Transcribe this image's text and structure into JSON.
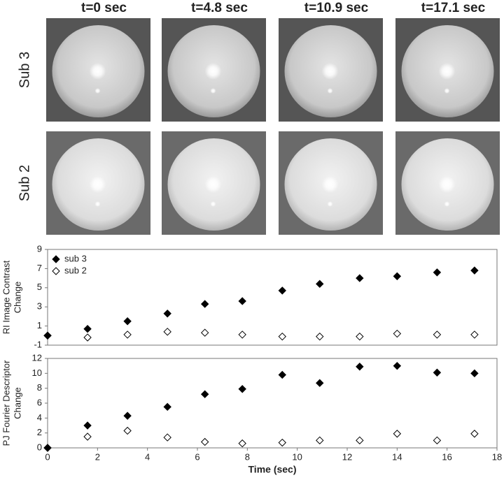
{
  "images": {
    "columns": [
      "t=0 sec",
      "t=4.8 sec",
      "t=10.9 sec",
      "t=17.1 sec"
    ],
    "rows": [
      "Sub 3",
      "Sub 2"
    ]
  },
  "chart_data": [
    {
      "type": "scatter",
      "ylabel": [
        "RI Image Contrast",
        "Change"
      ],
      "x": [
        0,
        1.6,
        3.2,
        4.8,
        6.3,
        7.8,
        9.4,
        10.9,
        12.5,
        14,
        15.6,
        17.1
      ],
      "xlim": [
        0,
        18
      ],
      "ylim": [
        -1,
        9
      ],
      "yticks": [
        -1,
        1,
        3,
        5,
        7,
        9
      ],
      "legend": "upper left",
      "series": [
        {
          "name": "sub 3",
          "color": "#000000",
          "filled": true,
          "values": [
            0,
            0.7,
            1.5,
            2.3,
            3.3,
            3.6,
            4.7,
            5.4,
            6.0,
            6.2,
            6.6,
            6.8
          ]
        },
        {
          "name": "sub 2",
          "color": "#000000",
          "filled": false,
          "values": [
            0,
            -0.2,
            0.1,
            0.4,
            0.3,
            0.1,
            -0.1,
            -0.1,
            -0.1,
            0.2,
            0.1,
            0.1
          ]
        }
      ]
    },
    {
      "type": "scatter",
      "ylabel": [
        "PJ Fourier Descriptor",
        "Change"
      ],
      "xlabel": "Time (sec)",
      "x": [
        0,
        1.6,
        3.2,
        4.8,
        6.3,
        7.8,
        9.4,
        10.9,
        12.5,
        14,
        15.6,
        17.1
      ],
      "xlim": [
        0,
        18
      ],
      "xticks": [
        0,
        2,
        4,
        6,
        8,
        10,
        12,
        14,
        16,
        18
      ],
      "ylim": [
        0,
        12
      ],
      "yticks": [
        0,
        2,
        4,
        6,
        8,
        10,
        12
      ],
      "series": [
        {
          "color": "#000000",
          "filled": true,
          "values": [
            0,
            3.0,
            4.3,
            5.5,
            7.2,
            7.9,
            9.8,
            8.7,
            10.9,
            11.0,
            10.1,
            10.0
          ]
        },
        {
          "color": "#000000",
          "filled": false,
          "values": [
            0,
            1.5,
            2.3,
            1.4,
            0.8,
            0.6,
            0.7,
            1.0,
            1.0,
            1.9,
            1.0,
            1.9
          ]
        }
      ]
    }
  ]
}
